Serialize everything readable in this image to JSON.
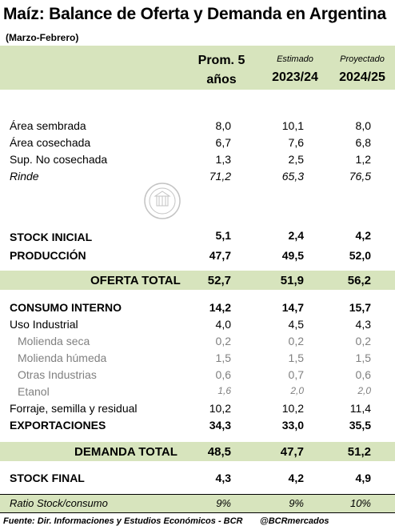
{
  "title": "Maíz: Balance de Oferta y Demanda en Argentina",
  "subtitle": "(Marzo-Febrero)",
  "header": {
    "col1": "Prom. 5",
    "col1b": "años",
    "col2_note": "Estimado",
    "col2": "2023/24",
    "col3_note": "Proyectado",
    "col3": "2024/25"
  },
  "rows": {
    "area_sembrada": {
      "label": "Área sembrada",
      "v": [
        "8,0",
        "10,1",
        "8,0"
      ]
    },
    "area_cosechada": {
      "label": "Área cosechada",
      "v": [
        "6,7",
        "7,6",
        "6,8"
      ]
    },
    "no_cosechada": {
      "label": "Sup. No cosechada",
      "v": [
        "1,3",
        "2,5",
        "1,2"
      ]
    },
    "rinde": {
      "label": "Rinde",
      "v": [
        "71,2",
        "65,3",
        "76,5"
      ]
    },
    "stock_inicial": {
      "label": "STOCK INICIAL",
      "v": [
        "5,1",
        "2,4",
        "4,2"
      ]
    },
    "produccion": {
      "label": "PRODUCCIÓN",
      "v": [
        "47,7",
        "49,5",
        "52,0"
      ]
    },
    "oferta_total": {
      "label": "OFERTA TOTAL",
      "v": [
        "52,7",
        "51,9",
        "56,2"
      ]
    },
    "consumo_interno": {
      "label": "CONSUMO INTERNO",
      "v": [
        "14,2",
        "14,7",
        "15,7"
      ]
    },
    "uso_industrial": {
      "label": "Uso Industrial",
      "v": [
        "4,0",
        "4,5",
        "4,3"
      ]
    },
    "molienda_seca": {
      "label": "Molienda seca",
      "v": [
        "0,2",
        "0,2",
        "0,2"
      ]
    },
    "molienda_humeda": {
      "label": "Molienda húmeda",
      "v": [
        "1,5",
        "1,5",
        "1,5"
      ]
    },
    "otras_industrias": {
      "label": "Otras Industrias",
      "v": [
        "0,6",
        "0,7",
        "0,6"
      ]
    },
    "etanol": {
      "label": "Etanol",
      "v": [
        "1,6",
        "2,0",
        "2,0"
      ]
    },
    "forraje": {
      "label": "Forraje, semilla y residual",
      "v": [
        "10,2",
        "10,2",
        "11,4"
      ]
    },
    "exportaciones": {
      "label": "EXPORTACIONES",
      "v": [
        "34,3",
        "33,0",
        "35,5"
      ]
    },
    "demanda_total": {
      "label": "DEMANDA TOTAL",
      "v": [
        "48,5",
        "47,7",
        "51,2"
      ]
    },
    "stock_final": {
      "label": "STOCK FINAL",
      "v": [
        "4,3",
        "4,2",
        "4,9"
      ]
    },
    "ratio": {
      "label": "Ratio Stock/consumo",
      "v": [
        "9%",
        "9%",
        "10%"
      ]
    }
  },
  "footer": {
    "source": "Fuente: Dir. Informaciones y Estudios Económicos - BCR",
    "handle": "@BCRmercados"
  },
  "colors": {
    "band": "#d7e4bd",
    "sub_text": "#808080"
  },
  "icons": {
    "watermark": "bcr-seal-icon"
  }
}
